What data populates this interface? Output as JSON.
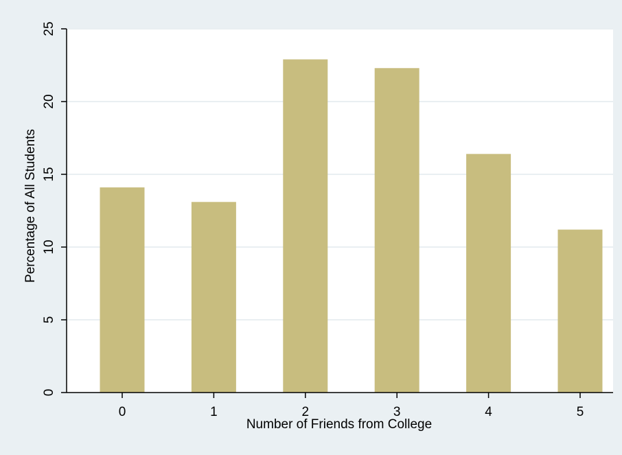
{
  "chart_data": {
    "type": "bar",
    "title": "",
    "xlabel": "Number of Friends from College",
    "ylabel": "Percentage of All Students",
    "categories": [
      "0",
      "1",
      "2",
      "3",
      "4",
      "5"
    ],
    "values": [
      14.1,
      13.1,
      22.9,
      22.3,
      16.4,
      11.2
    ],
    "ylim": [
      0,
      25
    ],
    "yticks": [
      "0",
      "5",
      "10",
      "15",
      "20",
      "25"
    ],
    "grid": true,
    "legend": "none",
    "colors": {
      "bar": "#c8bd7f",
      "plot_background": "#ffffff",
      "outer_background": "#eaf0f3",
      "gridline": "#e9eff2",
      "axis": "#000000"
    }
  }
}
